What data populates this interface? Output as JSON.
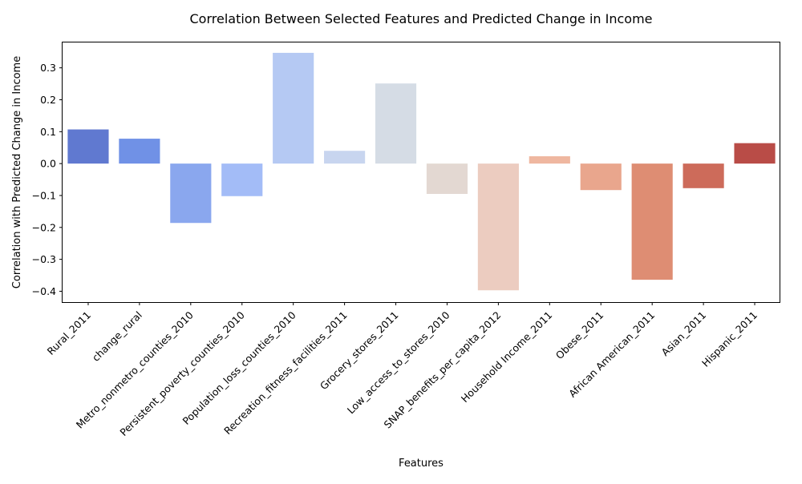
{
  "chart_data": {
    "type": "bar",
    "title": "Correlation Between Selected Features and Predicted Change in Income",
    "xlabel": "Features",
    "ylabel": "Correlation with Predicted Change in Income",
    "categories": [
      "Rural_2011",
      "change_rural",
      "Metro_nonmetro_counties_2010",
      "Persistent_poverty_counties_2010",
      "Population_loss_counties_2010",
      "Recreation_fitness_facilities_2011",
      "Grocery_stores_2011",
      "Low_access_to_stores_2010",
      "SNAP_benefits_per_capita_2012",
      "Household Income_2011",
      "Obese_2011",
      "African American_2011",
      "Asian_2011",
      "Hispanic_2011"
    ],
    "values": [
      0.107,
      0.078,
      -0.186,
      -0.102,
      0.347,
      0.04,
      0.251,
      -0.095,
      -0.397,
      0.023,
      -0.083,
      -0.364,
      -0.077,
      0.064
    ],
    "colors": [
      "#6079d0",
      "#7091e6",
      "#8aa7ee",
      "#a3bcf7",
      "#b5c9f3",
      "#c8d5ef",
      "#d5dce5",
      "#e3d8d2",
      "#ecccc0",
      "#efb7a0",
      "#e9a68d",
      "#de8d73",
      "#cd6b5a",
      "#b94c47"
    ],
    "ylim": [
      -0.434,
      0.382
    ],
    "yticks": [
      -0.4,
      -0.3,
      -0.2,
      -0.1,
      0.0,
      0.1,
      0.2,
      0.3
    ],
    "ytick_labels": [
      "−0.4",
      "−0.3",
      "−0.2",
      "−0.1",
      "0.0",
      "0.1",
      "0.2",
      "0.3"
    ],
    "grid": false,
    "legend": "none"
  }
}
